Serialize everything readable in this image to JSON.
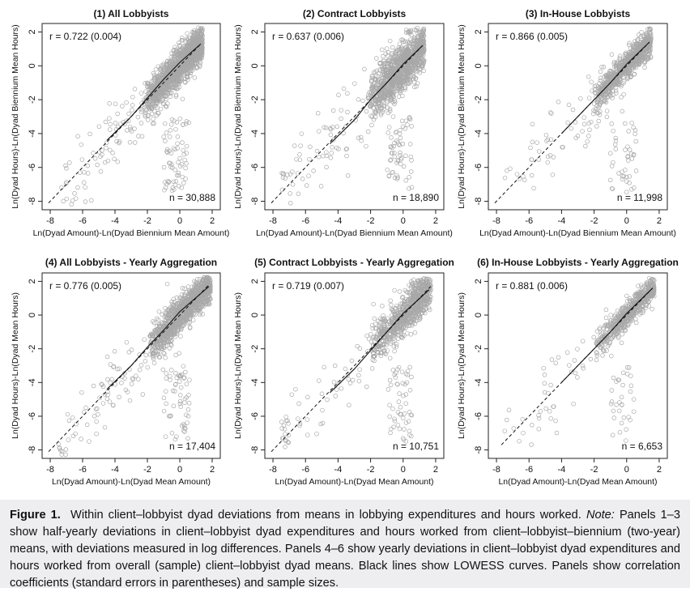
{
  "chart_data": [
    {
      "type": "scatter",
      "title": "(1) All Lobbyists",
      "xlabel": "Ln(Dyad Amount)-Ln(Dyad Biennium Mean Amount)",
      "ylabel": "Ln(Dyad Hours)-Ln(Dyad Biennium Mean Hours)",
      "xlim": [
        -8.5,
        2.5
      ],
      "ylim": [
        -8.5,
        2.5
      ],
      "xticks": [
        "-8",
        "-6",
        "-4",
        "-2",
        "0",
        "2"
      ],
      "yticks": [
        "-8",
        "-6",
        "-4",
        "-2",
        "0",
        "2"
      ],
      "correlation": "r = 0.722 (0.004)",
      "sample_size": "n = 30,888",
      "point_color": "#a8a8a8",
      "series": [
        {
          "lines": "45-degree reference",
          "style": "dashed",
          "x": [
            -8.1,
            1.3
          ],
          "y": [
            -8.1,
            1.3
          ]
        },
        {
          "lines": "LOWESS",
          "style": "solid",
          "x": [
            -4.5,
            -3,
            -2,
            -1,
            0,
            1.3
          ],
          "y": [
            -4.4,
            -3.0,
            -1.9,
            -0.8,
            0.2,
            1.3
          ]
        }
      ]
    },
    {
      "type": "scatter",
      "title": "(2) Contract Lobbyists",
      "xlabel": "Ln(Dyad Amount)-Ln(Dyad Biennium Mean Amount)",
      "ylabel": "Ln(Dyad Hours)-Ln(Dyad Biennium Mean Hours)",
      "xlim": [
        -8.5,
        2.5
      ],
      "ylim": [
        -8.5,
        2.5
      ],
      "xticks": [
        "-8",
        "-6",
        "-4",
        "-2",
        "0",
        "2"
      ],
      "yticks": [
        "-8",
        "-6",
        "-4",
        "-2",
        "0",
        "2"
      ],
      "correlation": "r = 0.637 (0.006)",
      "sample_size": "n = 18,890",
      "point_color": "#a8a8a8",
      "series": [
        {
          "lines": "45-degree reference",
          "style": "dashed",
          "x": [
            -8.1,
            1.3
          ],
          "y": [
            -8.1,
            1.3
          ]
        },
        {
          "lines": "LOWESS",
          "style": "solid",
          "x": [
            -4.5,
            -3,
            -2,
            -1,
            0,
            1.2
          ],
          "y": [
            -4.6,
            -3.2,
            -2.0,
            -1.0,
            0.1,
            1.2
          ]
        }
      ]
    },
    {
      "type": "scatter",
      "title": "(3) In-House Lobbyists",
      "xlabel": "Ln(Dyad Amount)-Ln(Dyad Biennium Mean Amount)",
      "ylabel": "Ln(Dyad Hours)-Ln(Dyad Biennium Mean Hours)",
      "xlim": [
        -8.5,
        2.5
      ],
      "ylim": [
        -8.5,
        2.5
      ],
      "xticks": [
        "-8",
        "-6",
        "-4",
        "-2",
        "0",
        "2"
      ],
      "yticks": [
        "-8",
        "-6",
        "-4",
        "-2",
        "0",
        "2"
      ],
      "correlation": "r = 0.866 (0.005)",
      "sample_size": "n = 11,998",
      "point_color": "#a8a8a8",
      "series": [
        {
          "lines": "45-degree reference",
          "style": "dashed",
          "x": [
            -8.1,
            1.4
          ],
          "y": [
            -8.1,
            1.4
          ]
        },
        {
          "lines": "LOWESS",
          "style": "solid",
          "x": [
            -4,
            -3,
            -2,
            -1,
            0,
            1.4
          ],
          "y": [
            -4.0,
            -3.0,
            -2.0,
            -1.0,
            0.1,
            1.4
          ]
        }
      ]
    },
    {
      "type": "scatter",
      "title": "(4) All Lobbyists - Yearly Aggregation",
      "xlabel": "Ln(Dyad Amount)-Ln(Dyad Mean Amount)",
      "ylabel": "Ln(Dyad Hours)-Ln(Dyad Mean Hours)",
      "xlim": [
        -8.5,
        2.5
      ],
      "ylim": [
        -8.5,
        2.5
      ],
      "xticks": [
        "-8",
        "-6",
        "-4",
        "-2",
        "0",
        "2"
      ],
      "yticks": [
        "-8",
        "-6",
        "-4",
        "-2",
        "0",
        "2"
      ],
      "correlation": "r = 0.776 (0.005)",
      "sample_size": "n = 17,404",
      "point_color": "#a8a8a8",
      "series": [
        {
          "lines": "45-degree reference",
          "style": "dashed",
          "x": [
            -8.1,
            1.8
          ],
          "y": [
            -8.1,
            1.8
          ]
        },
        {
          "lines": "LOWESS",
          "style": "solid",
          "x": [
            -4.5,
            -3,
            -2,
            -1,
            0,
            1.8
          ],
          "y": [
            -4.4,
            -3.0,
            -1.9,
            -0.9,
            0.2,
            1.7
          ]
        }
      ]
    },
    {
      "type": "scatter",
      "title": "(5) Contract Lobbyists - Yearly Aggregation",
      "xlabel": "Ln(Dyad Amount)-Ln(Dyad Mean Amount)",
      "ylabel": "Ln(Dyad Hours)-Ln(Dyad Mean Hours)",
      "xlim": [
        -8.5,
        2.5
      ],
      "ylim": [
        -8.5,
        2.5
      ],
      "xticks": [
        "-8",
        "-6",
        "-4",
        "-2",
        "0",
        "2"
      ],
      "yticks": [
        "-8",
        "-6",
        "-4",
        "-2",
        "0",
        "2"
      ],
      "correlation": "r = 0.719 (0.007)",
      "sample_size": "n = 10,751",
      "point_color": "#a8a8a8",
      "series": [
        {
          "lines": "45-degree reference",
          "style": "dashed",
          "x": [
            -8.1,
            1.7
          ],
          "y": [
            -8.1,
            1.7
          ]
        },
        {
          "lines": "LOWESS",
          "style": "solid",
          "x": [
            -4.5,
            -3,
            -2,
            -1,
            0,
            1.6
          ],
          "y": [
            -4.6,
            -3.2,
            -2.1,
            -1.0,
            0.1,
            1.5
          ]
        }
      ]
    },
    {
      "type": "scatter",
      "title": "(6) In-House Lobbyists - Yearly Aggregation",
      "xlabel": "Ln(Dyad Amount)-Ln(Dyad Mean Amount)",
      "ylabel": "Ln(Dyad Hours)-Ln(Dyad Mean Hours)",
      "xlim": [
        -8.5,
        2.5
      ],
      "ylim": [
        -8.5,
        2.5
      ],
      "xticks": [
        "-8",
        "-6",
        "-4",
        "-2",
        "0",
        "2"
      ],
      "yticks": [
        "-8",
        "-6",
        "-4",
        "-2",
        "0",
        "2"
      ],
      "correlation": "r = 0.881 (0.006)",
      "sample_size": "n = 6,653",
      "point_color": "#a8a8a8",
      "series": [
        {
          "lines": "45-degree reference",
          "style": "dashed",
          "x": [
            -7.7,
            1.6
          ],
          "y": [
            -7.7,
            1.6
          ]
        },
        {
          "lines": "LOWESS",
          "style": "solid",
          "x": [
            -4,
            -3,
            -2,
            -1,
            0,
            1.6
          ],
          "y": [
            -4.0,
            -3.0,
            -2.0,
            -1.0,
            0.1,
            1.6
          ]
        }
      ]
    }
  ],
  "caption": {
    "label": "Figure 1.",
    "text": "Within client–lobbyist dyad deviations from means in lobbying expenditures and hours worked.",
    "note_label": "Note:",
    "note_text": "Panels 1–3 show half-yearly deviations in client–lobbyist dyad expenditures and hours worked from client–lobbyist–biennium (two-year) means, with deviations measured in log differences. Panels 4–6 show yearly deviations in client–lobbyist dyad expenditures and hours worked from overall (sample) client–lobbyist dyad means. Black lines show LOWESS curves. Panels show correlation coefficients (standard errors in parentheses) and sample sizes."
  }
}
